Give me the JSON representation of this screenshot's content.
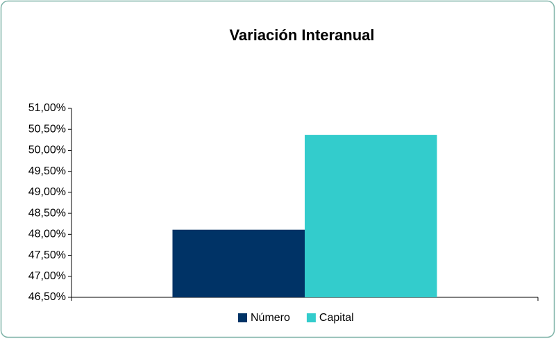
{
  "chart_data": {
    "type": "bar",
    "title": "Variación  Interanual",
    "categories": [
      null
    ],
    "series": [
      {
        "name": "Número",
        "color": "#003366",
        "values": [
          48.11
        ]
      },
      {
        "name": "Capital",
        "color": "#33CCCC",
        "values": [
          50.37
        ]
      }
    ],
    "ylim": [
      46.5,
      51
    ],
    "yticks": [
      {
        "value": 46.5,
        "label": "46,50%"
      },
      {
        "value": 47,
        "label": "47,00%"
      },
      {
        "value": 47.5,
        "label": "47,50%"
      },
      {
        "value": 48,
        "label": "48,00%"
      },
      {
        "value": 48.5,
        "label": "48,50%"
      },
      {
        "value": 49,
        "label": "49,00%"
      },
      {
        "value": 49.5,
        "label": "49,50%"
      },
      {
        "value": 50,
        "label": "50,00%"
      },
      {
        "value": 50.5,
        "label": "50,50%"
      },
      {
        "value": 51,
        "label": "51,00%"
      }
    ],
    "grid": false,
    "legend": "bottom"
  }
}
